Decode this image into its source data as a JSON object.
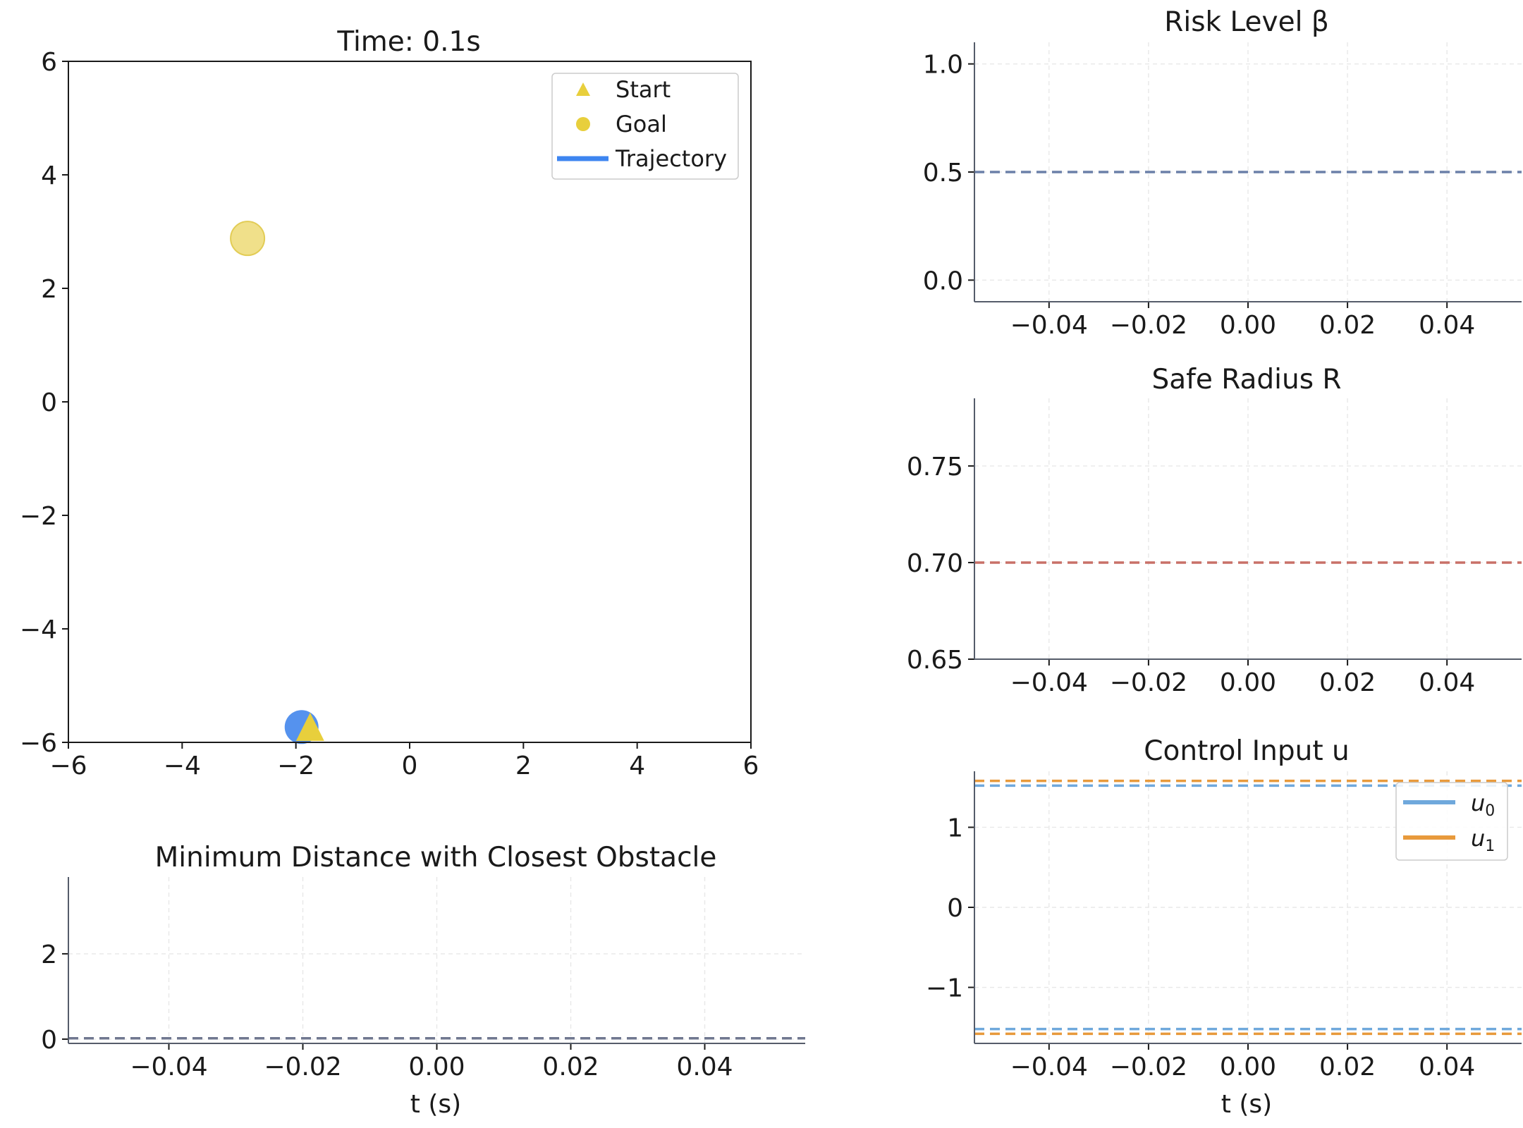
{
  "chart_data": [
    {
      "id": "trajectory",
      "type": "scatter",
      "title": "Time: 0.1s",
      "xlim": [
        -6,
        6
      ],
      "ylim": [
        -6,
        6
      ],
      "xticks": [
        -6,
        -4,
        -2,
        0,
        2,
        4,
        6
      ],
      "yticks": [
        -6,
        -4,
        -2,
        0,
        2,
        4,
        6
      ],
      "xtick_labels": [
        "−6",
        "−4",
        "−2",
        "0",
        "2",
        "4",
        "6"
      ],
      "ytick_labels": [
        "−6",
        "−4",
        "−2",
        "0",
        "2",
        "4",
        "6"
      ],
      "legend": {
        "placement": "top-right",
        "entries": [
          {
            "label": "Start",
            "marker": "triangle",
            "color": "#e8cf3c"
          },
          {
            "label": "Goal",
            "marker": "circle",
            "color": "#e8cf3c"
          },
          {
            "label": "Trajectory",
            "marker": "line",
            "color": "#3d85f0"
          }
        ]
      },
      "points": {
        "goal": {
          "x": -2.85,
          "y": 2.88,
          "color": "#f0e08a",
          "edge": "#e2cc55"
        },
        "robot": {
          "x": -1.9,
          "y": -5.73,
          "color": "#5592ee"
        },
        "start": {
          "x": -1.75,
          "y": -5.8,
          "color": "#e8cf3c"
        }
      }
    },
    {
      "id": "risk",
      "type": "line",
      "title": "Risk Level β",
      "xlim": [
        -0.055,
        0.055
      ],
      "ylim": [
        -0.1,
        1.1
      ],
      "xticks": [
        -0.04,
        -0.02,
        0.0,
        0.02,
        0.04
      ],
      "yticks": [
        0.0,
        0.5,
        1.0
      ],
      "xtick_labels": [
        "−0.04",
        "−0.02",
        "0.00",
        "0.02",
        "0.04"
      ],
      "ytick_labels": [
        "0.0",
        "0.5",
        "1.0"
      ],
      "grid": true,
      "hlines": [
        {
          "y": 0.5,
          "color": "#6b80a8",
          "style": "dashed"
        }
      ]
    },
    {
      "id": "radius",
      "type": "line",
      "title": "Safe Radius R",
      "xlim": [
        -0.055,
        0.055
      ],
      "ylim": [
        0.65,
        0.785
      ],
      "xticks": [
        -0.04,
        -0.02,
        0.0,
        0.02,
        0.04
      ],
      "yticks": [
        0.65,
        0.7,
        0.75
      ],
      "xtick_labels": [
        "−0.04",
        "−0.02",
        "0.00",
        "0.02",
        "0.04"
      ],
      "ytick_labels": [
        "0.65",
        "0.70",
        "0.75"
      ],
      "grid": true,
      "hlines": [
        {
          "y": 0.7,
          "color": "#c87068",
          "style": "dashed"
        }
      ]
    },
    {
      "id": "control",
      "type": "line",
      "title": "Control Input u",
      "xlim": [
        -0.055,
        0.055
      ],
      "ylim": [
        -1.7,
        1.7
      ],
      "xticks": [
        -0.04,
        -0.02,
        0.0,
        0.02,
        0.04
      ],
      "yticks": [
        -1,
        0,
        1
      ],
      "xtick_labels": [
        "−0.04",
        "−0.02",
        "0.00",
        "0.02",
        "0.04"
      ],
      "ytick_labels": [
        "−1",
        "0",
        "1"
      ],
      "xlabel": "t (s)",
      "grid": true,
      "legend": {
        "placement": "top-right",
        "entries": [
          {
            "label": "u",
            "sub": "0",
            "color": "#6fa8dc"
          },
          {
            "label": "u",
            "sub": "1",
            "color": "#e89a3c"
          }
        ]
      },
      "hlines": [
        {
          "y": 1.58,
          "color": "#e89a3c",
          "style": "dashed"
        },
        {
          "y": 1.52,
          "color": "#6fa8dc",
          "style": "dashed"
        },
        {
          "y": -1.52,
          "color": "#6fa8dc",
          "style": "dashed"
        },
        {
          "y": -1.58,
          "color": "#e89a3c",
          "style": "dashed"
        }
      ]
    },
    {
      "id": "distance",
      "type": "line",
      "title": "Minimum Distance with Closest Obstacle",
      "xlim": [
        -0.055,
        0.055
      ],
      "ylim": [
        -0.1,
        3.8
      ],
      "xticks": [
        -0.04,
        -0.02,
        0.0,
        0.02,
        0.04
      ],
      "yticks": [
        0,
        2
      ],
      "xtick_labels": [
        "−0.04",
        "−0.02",
        "0.00",
        "0.02",
        "0.04"
      ],
      "ytick_labels": [
        "0",
        "2"
      ],
      "xlabel": "t (s)",
      "grid": true,
      "hlines": [
        {
          "y": 0.02,
          "color": "#707890",
          "style": "dashed"
        }
      ]
    }
  ]
}
